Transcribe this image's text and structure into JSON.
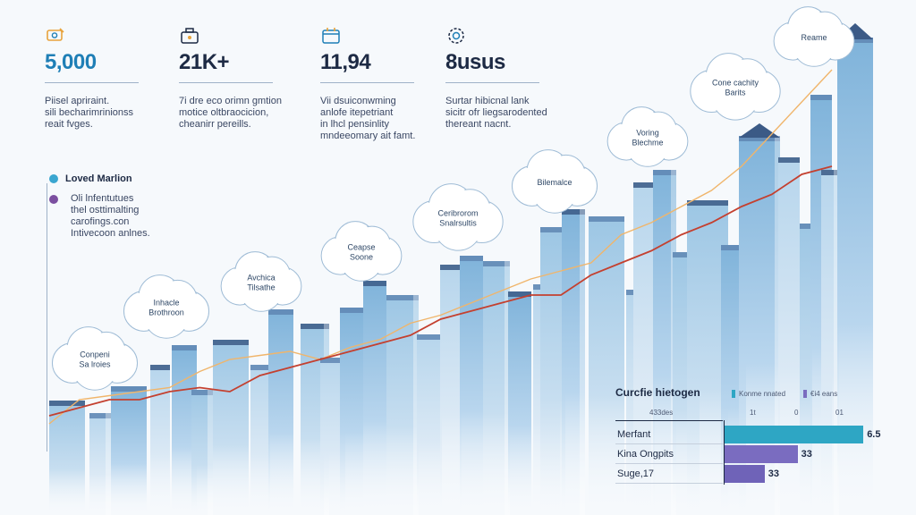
{
  "stats": [
    {
      "value": "5,000",
      "desc": "Piisel apriraint.\nsili becharimrinionss\nreait fvges."
    },
    {
      "value": "21K+",
      "desc": "7i dre eco orimn gmtion\nmotice oltbraocicion,\ncheanirr pereills."
    },
    {
      "value": "11,94",
      "desc": "Vii dsuiconwming\nanlofe itepetriant\nin lhcl pensinlity\nmndeeomary ait famt."
    },
    {
      "value": "8usus",
      "desc": "Surtar hibicnal lank\nsicitr ofr liegsarodented\nthereant nacnt."
    }
  ],
  "colors": {
    "accent": "#2b9fc0",
    "line_orange": "#f0b56b",
    "line_red": "#c4402f",
    "bar_teal": "#2ea6c4",
    "bar_purple": "#7a6cc0",
    "navy": "#1d2a44",
    "stat_blue": "#1f7fb6"
  },
  "legend": {
    "item1": "Loved Marlion",
    "item1_color": "#3aa6d0",
    "item2_color": "#7b4fa0",
    "item2_text": "Oli lnfentutues\nthel osttimalting\ncarofings.con\nIntivecoon anlnes."
  },
  "clouds": [
    "Conpeni\nSa lroies",
    "Inhacle\nBrothroon",
    "Avchica\nTilsathe",
    "Ceapse\nSoone",
    "Ceribrorom\nSnalrsultis",
    "Bilemalce",
    "Voring\nBlechme",
    "Cone cachity\nBarits",
    "Reame"
  ],
  "chart_data": {
    "type": "line",
    "title": "",
    "xlabel": "",
    "ylabel": "",
    "ylim": [
      0,
      100
    ],
    "x": [
      1,
      2,
      3,
      4,
      5,
      6,
      7,
      8,
      9,
      10,
      11,
      12,
      13,
      14,
      15,
      16,
      17,
      18,
      19,
      20,
      21,
      22,
      23,
      24,
      25,
      26,
      27
    ],
    "series": [
      {
        "values": [
          8,
          14,
          15,
          16,
          17,
          21,
          24,
          25,
          26,
          24,
          27,
          29,
          33,
          35,
          38,
          41,
          44,
          46,
          48,
          55,
          58,
          62,
          66,
          72,
          80,
          88,
          96
        ]
      },
      {
        "values": [
          10,
          12,
          14,
          14,
          16,
          17,
          16,
          20,
          22,
          24,
          26,
          28,
          30,
          34,
          36,
          38,
          40,
          40,
          45,
          48,
          51,
          55,
          58,
          62,
          65,
          70,
          72
        ]
      }
    ]
  },
  "panel": {
    "title": "Curcfie hietogen",
    "legend1": "Konme nnated",
    "legend2": "€i4 eans",
    "col_header": "433des",
    "axis_ticks": [
      "1t",
      "0",
      "01"
    ],
    "rows": [
      {
        "label": "Merfant",
        "value": "6.5",
        "fraction": 0.97,
        "color": "#2ea6c4"
      },
      {
        "label": "Kina Ongpits",
        "value": "33",
        "fraction": 0.51,
        "color": "#7a6cc0"
      },
      {
        "label": "Suge,17",
        "value": "33",
        "fraction": 0.28,
        "color": "#6f63b8"
      }
    ]
  }
}
